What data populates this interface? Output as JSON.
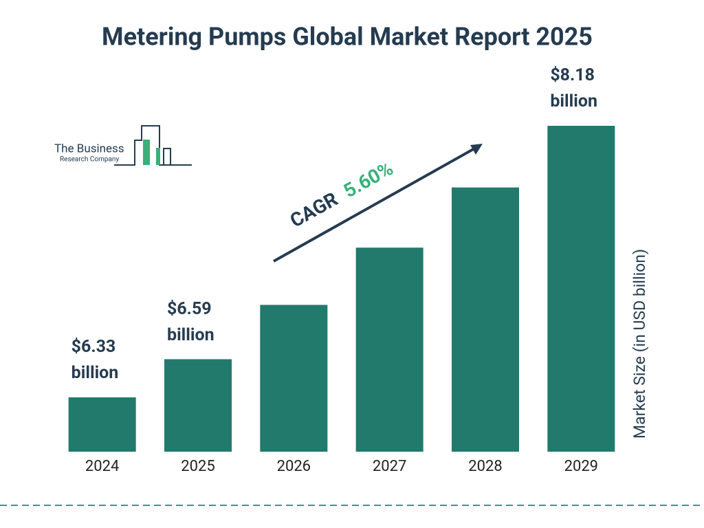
{
  "chart_data": {
    "type": "bar",
    "title": "Metering Pumps Global Market Report 2025",
    "categories": [
      "2024",
      "2025",
      "2026",
      "2027",
      "2028",
      "2029"
    ],
    "values": [
      6.33,
      6.59,
      6.96,
      7.35,
      7.76,
      8.18
    ],
    "value_labels": [
      "$6.33 billion",
      "$6.59 billion",
      null,
      null,
      null,
      "$8.18 billion"
    ],
    "color": "#217a6b",
    "y_label": "Market Size (in USD billion)",
    "cagr": {
      "label": "CAGR",
      "value": 5.6,
      "value_label": "5.60%"
    }
  },
  "logo": {
    "line1": "The Business",
    "line2": "Research Company"
  }
}
